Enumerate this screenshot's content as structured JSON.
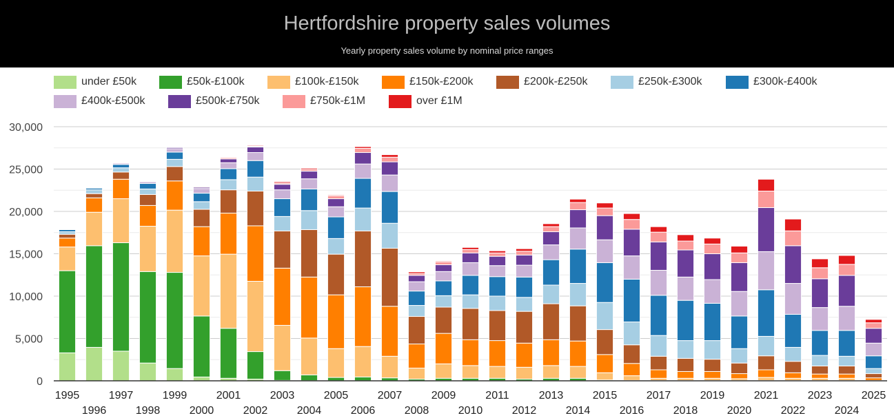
{
  "chart_data": {
    "type": "bar",
    "stacked": true,
    "title": "Hertfordshire property sales volumes",
    "subtitle": "Yearly property sales volume by nominal price ranges",
    "xlabel": "",
    "ylabel": "",
    "ylim": [
      0,
      30000
    ],
    "yticks": [
      0,
      5000,
      10000,
      15000,
      20000,
      25000,
      30000
    ],
    "ytick_labels": [
      "0",
      "5,000",
      "10,000",
      "15,000",
      "20,000",
      "25,000",
      "30,000"
    ],
    "grid": true,
    "legend_position": "top",
    "categories": [
      "1995",
      "1996",
      "1997",
      "1998",
      "1999",
      "2000",
      "2001",
      "2002",
      "2003",
      "2004",
      "2005",
      "2006",
      "2007",
      "2008",
      "2009",
      "2010",
      "2011",
      "2012",
      "2013",
      "2014",
      "2015",
      "2016",
      "2017",
      "2018",
      "2019",
      "2020",
      "2021",
      "2022",
      "2023",
      "2024",
      "2025"
    ],
    "series": [
      {
        "name": "under £50k",
        "color": "#b2df8a",
        "values": [
          3300,
          3950,
          3500,
          2100,
          1450,
          450,
          300,
          200,
          50,
          20,
          10,
          10,
          10,
          10,
          10,
          10,
          10,
          10,
          10,
          10,
          10,
          10,
          10,
          10,
          10,
          10,
          10,
          10,
          10,
          10,
          5
        ]
      },
      {
        "name": "£50k-£100k",
        "color": "#33a02c",
        "values": [
          9700,
          12000,
          12800,
          10800,
          11350,
          7200,
          5900,
          3250,
          1150,
          680,
          390,
          440,
          340,
          190,
          290,
          290,
          290,
          190,
          290,
          290,
          90,
          40,
          30,
          30,
          30,
          30,
          30,
          30,
          30,
          30,
          15
        ]
      },
      {
        "name": "£100k-£150k",
        "color": "#fdbf6f",
        "values": [
          2800,
          3950,
          5200,
          5350,
          7350,
          7100,
          8750,
          8300,
          5350,
          4350,
          3400,
          3600,
          2550,
          1300,
          1700,
          1500,
          1400,
          1400,
          1500,
          1400,
          850,
          550,
          260,
          260,
          260,
          210,
          360,
          260,
          260,
          260,
          30
        ]
      },
      {
        "name": "£150k-£200k",
        "color": "#ff7f00",
        "values": [
          1050,
          1700,
          2300,
          2450,
          3450,
          3450,
          4850,
          6550,
          6750,
          7200,
          6350,
          7050,
          5900,
          2850,
          3600,
          3050,
          3050,
          2850,
          3050,
          3000,
          2150,
          1450,
          1000,
          800,
          800,
          600,
          900,
          650,
          500,
          500,
          300
        ]
      },
      {
        "name": "£200k-£250k",
        "color": "#b15928",
        "values": [
          450,
          500,
          850,
          1300,
          1700,
          2050,
          2750,
          4100,
          4400,
          5600,
          4800,
          6600,
          6850,
          3250,
          3100,
          3700,
          3550,
          3750,
          4250,
          4150,
          2950,
          2200,
          1600,
          1550,
          1450,
          1250,
          1650,
          1350,
          950,
          950,
          500
        ]
      },
      {
        "name": "£250k-£300k",
        "color": "#a6cee3",
        "values": [
          300,
          450,
          500,
          650,
          850,
          900,
          1200,
          1650,
          1700,
          2250,
          1850,
          2700,
          2950,
          1300,
          1350,
          1600,
          1700,
          1650,
          2200,
          2650,
          3200,
          2700,
          2450,
          2100,
          2200,
          1700,
          2300,
          1650,
          1250,
          1150,
          600
        ]
      },
      {
        "name": "£300k-£400k",
        "color": "#1f78b4",
        "values": [
          250,
          200,
          400,
          650,
          850,
          1000,
          1300,
          1950,
          2100,
          2550,
          2550,
          3500,
          3750,
          1700,
          1750,
          2300,
          2300,
          2400,
          3000,
          4050,
          4700,
          5050,
          4750,
          4750,
          4400,
          3850,
          5500,
          3900,
          2950,
          3050,
          1500
        ]
      },
      {
        "name": "£400k-£500k",
        "color": "#cab2d6",
        "values": [
          50,
          80,
          150,
          200,
          400,
          550,
          700,
          950,
          1050,
          1200,
          1200,
          1700,
          1950,
          1100,
          1100,
          1500,
          1300,
          1400,
          1750,
          2500,
          2700,
          2750,
          2950,
          2750,
          2800,
          2900,
          4500,
          3650,
          2700,
          2850,
          1500
        ]
      },
      {
        "name": "£500k-£750k",
        "color": "#6a3d9a",
        "values": [
          30,
          60,
          60,
          80,
          150,
          150,
          450,
          650,
          650,
          900,
          950,
          1350,
          1550,
          750,
          800,
          1150,
          1100,
          1200,
          1550,
          2150,
          2850,
          3150,
          3350,
          3200,
          3050,
          3400,
          5200,
          4450,
          3400,
          3650,
          1750
        ]
      },
      {
        "name": "£750k-£1M",
        "color": "#fb9a99",
        "values": [
          10,
          50,
          80,
          70,
          60,
          100,
          150,
          100,
          150,
          200,
          350,
          500,
          550,
          200,
          350,
          400,
          400,
          450,
          600,
          850,
          900,
          1150,
          1150,
          1050,
          1150,
          1150,
          1950,
          1750,
          1300,
          1300,
          650
        ]
      },
      {
        "name": "over £1M",
        "color": "#e31a1c",
        "values": [
          10,
          30,
          70,
          80,
          40,
          50,
          50,
          100,
          150,
          150,
          100,
          200,
          300,
          200,
          100,
          250,
          250,
          300,
          350,
          400,
          600,
          700,
          650,
          750,
          700,
          800,
          1400,
          1400,
          1050,
          1050,
          400
        ]
      }
    ]
  }
}
